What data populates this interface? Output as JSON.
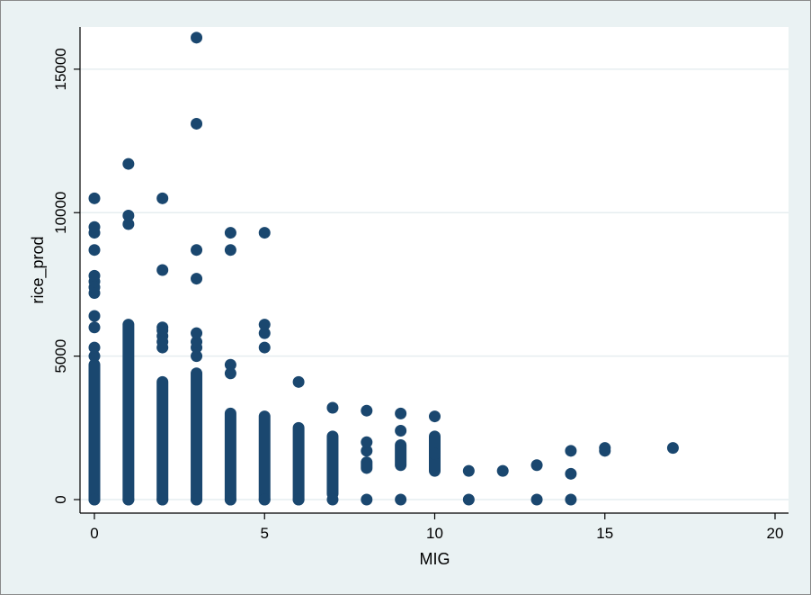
{
  "chart_data": {
    "type": "scatter",
    "title": "",
    "xlabel": "MIG",
    "ylabel": "rice_prod",
    "xlim": [
      0,
      20
    ],
    "ylim": [
      0,
      16000
    ],
    "xticks": [
      0,
      5,
      10,
      15,
      20
    ],
    "yticks": [
      0,
      5000,
      10000,
      15000
    ],
    "x_tick_labels": [
      "0",
      "5",
      "10",
      "15",
      "20"
    ],
    "y_tick_labels": [
      "0",
      "5000",
      "10000",
      "15000"
    ],
    "grid": "horizontal",
    "marker_color": "#1a476f",
    "background_color": "#eaf2f3",
    "plot_background_color": "#ffffff",
    "gridline_color": "#e6eef0",
    "columns": [
      {
        "x": 0,
        "dense_min": 0,
        "dense_max": 4700,
        "points": [
          0,
          5000,
          5300,
          6000,
          6400,
          7200,
          7400,
          7600,
          7800,
          8700,
          9300,
          9500,
          10500
        ]
      },
      {
        "x": 1,
        "dense_min": 0,
        "dense_max": 6100,
        "points": [
          0,
          9600,
          9900,
          11700
        ]
      },
      {
        "x": 2,
        "dense_min": 0,
        "dense_max": 4100,
        "points": [
          0,
          5300,
          5500,
          5700,
          5900,
          6000,
          8000,
          10500
        ]
      },
      {
        "x": 3,
        "dense_min": 0,
        "dense_max": 4400,
        "points": [
          0,
          5000,
          5300,
          5500,
          5800,
          7700,
          8700,
          13100,
          16100
        ]
      },
      {
        "x": 4,
        "dense_min": 0,
        "dense_max": 3000,
        "points": [
          0,
          4400,
          4700,
          8700,
          9300
        ]
      },
      {
        "x": 5,
        "dense_min": 0,
        "dense_max": 2900,
        "points": [
          0,
          5300,
          5800,
          6100,
          9300
        ]
      },
      {
        "x": 6,
        "dense_min": 0,
        "dense_max": 2500,
        "points": [
          0,
          4100
        ]
      },
      {
        "x": 7,
        "dense_min": 200,
        "dense_max": 2200,
        "points": [
          0,
          3200
        ]
      },
      {
        "x": 8,
        "dense_min": 1100,
        "dense_max": 1300,
        "points": [
          0,
          1700,
          2000,
          3100
        ]
      },
      {
        "x": 9,
        "dense_min": 1200,
        "dense_max": 1900,
        "points": [
          0,
          2400,
          3000
        ]
      },
      {
        "x": 10,
        "dense_min": 1000,
        "dense_max": 2200,
        "points": [
          1600,
          2900
        ]
      },
      {
        "x": 11,
        "dense_min": null,
        "dense_max": null,
        "points": [
          0,
          1000
        ]
      },
      {
        "x": 12,
        "dense_min": null,
        "dense_max": null,
        "points": [
          1000
        ]
      },
      {
        "x": 13,
        "dense_min": null,
        "dense_max": null,
        "points": [
          0,
          1200
        ]
      },
      {
        "x": 14,
        "dense_min": null,
        "dense_max": null,
        "points": [
          0,
          900,
          1700
        ]
      },
      {
        "x": 15,
        "dense_min": null,
        "dense_max": null,
        "points": [
          1700,
          1800
        ]
      },
      {
        "x": 17,
        "dense_min": null,
        "dense_max": null,
        "points": [
          1800
        ]
      }
    ]
  }
}
